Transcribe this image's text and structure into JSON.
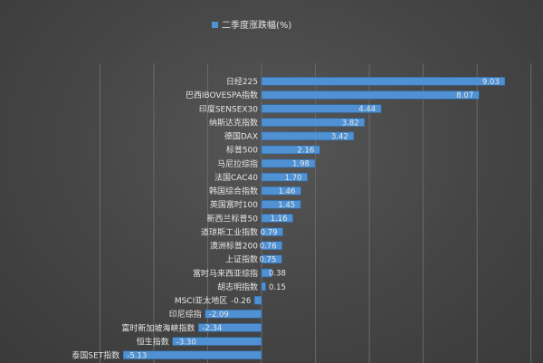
{
  "chart_data": {
    "type": "bar",
    "orientation": "horizontal",
    "legend": {
      "name": "二季度涨跌幅(%)",
      "position": "top"
    },
    "xlim": [
      -6,
      10
    ],
    "grid": true,
    "categories": [
      "日经225",
      "巴西IBOVESPA指数",
      "印度SENSEX30",
      "纳斯达克指数",
      "德国DAX",
      "标普500",
      "马尼拉综指",
      "法国CAC40",
      "韩国综合指数",
      "英国富时100",
      "新西兰标普50",
      "道琼斯工业指数",
      "澳洲标普200",
      "上证指数",
      "富时马来西亚综指",
      "胡志明指数",
      "MSCI亚太地区",
      "印尼综指",
      "富时新加坡海峡指数",
      "恒生指数",
      "泰国SET指数"
    ],
    "series": [
      {
        "name": "二季度涨跌幅(%)",
        "values": [
          9.03,
          8.07,
          4.44,
          3.82,
          3.42,
          2.16,
          1.98,
          1.7,
          1.46,
          1.45,
          1.16,
          0.79,
          0.76,
          0.75,
          0.38,
          0.15,
          -0.26,
          -2.09,
          -2.34,
          -3.3,
          -5.13
        ],
        "value_labels": [
          "9.03",
          "8.07",
          "4.44",
          "3.82",
          "3.42",
          "2.16",
          "1.98",
          "1.70",
          "1.46",
          "1.45",
          "1.16",
          "0.79",
          "0.76",
          "0.75",
          "0.38",
          "0.15",
          "-0.26",
          "-2.09",
          "-2.34",
          "-3.30",
          "-5.13"
        ]
      }
    ],
    "colors": {
      "bar": "#4f91d3",
      "bar_border": "#2f6fb0",
      "grid": "#6a6a6a",
      "text": "#e6e6e6"
    }
  }
}
